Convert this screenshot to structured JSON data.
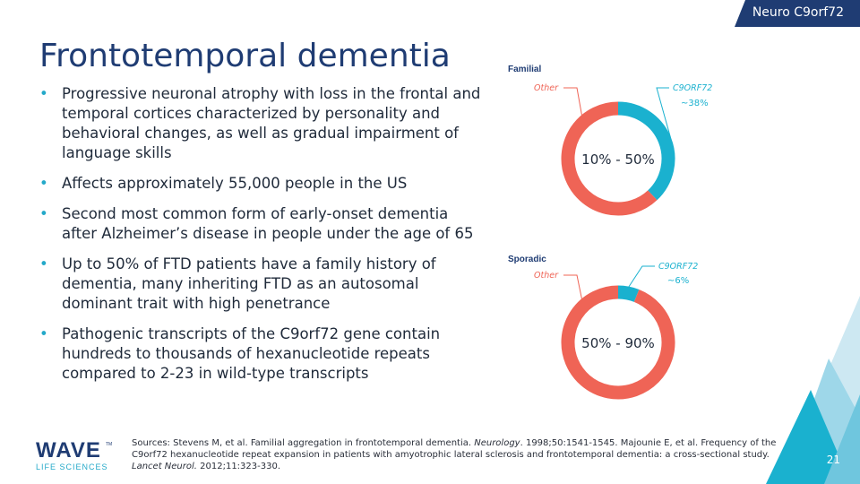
{
  "header": {
    "tag_label": "Neuro C9orf72"
  },
  "page": {
    "title": "Frontotemporal dementia",
    "number": "21"
  },
  "bullets": [
    "Progressive neuronal atrophy with loss in the frontal and temporal cortices characterized by personality and behavioral changes, as well as gradual impairment of language skills",
    "Affects approximately 55,000 people in the US",
    "Second most common form of early-onset dementia after Alzheimer’s disease in people under the age of 65",
    "Up to 50% of FTD patients have a family history of dementia, many inheriting FTD as an autosomal dominant trait with high penetrance",
    "Pathogenic transcripts of the C9orf72 gene contain hundreds to thousands of hexanucleotide repeats compared to 2-23 in wild-type transcripts"
  ],
  "chart_data": [
    {
      "type": "pie",
      "title": "Familial",
      "center_label": "10% - 50%",
      "slices": [
        {
          "label": "C9ORF72",
          "value": 38,
          "value_label": "~38%",
          "color": "#1ab1cf"
        },
        {
          "label": "Other",
          "value": 62,
          "value_label": "",
          "color": "#ef6456"
        }
      ]
    },
    {
      "type": "pie",
      "title": "Sporadic",
      "center_label": "50% - 90%",
      "slices": [
        {
          "label": "C9ORF72",
          "value": 6,
          "value_label": "~6%",
          "color": "#1ab1cf"
        },
        {
          "label": "Other",
          "value": 94,
          "value_label": "",
          "color": "#ef6456"
        }
      ]
    }
  ],
  "footer": {
    "sources": [
      {
        "text": "Sources: Stevens M, et al. Familial aggregation in frontotemporal dementia. ",
        "italic": false
      },
      {
        "text": "Neurology",
        "italic": true
      },
      {
        "text": ". 1998;50:1541-1545. Majounie E, et al. Frequency of the C9orf72 hexanucleotide repeat expansion in patients with amyotrophic lateral sclerosis and frontotemporal dementia: a cross-sectional study. ",
        "italic": false
      },
      {
        "text": "Lancet Neurol.",
        "italic": true
      },
      {
        "text": " 2012;11:323-330.",
        "italic": false
      }
    ],
    "logo": {
      "name": "WAVE",
      "trademark": "TM",
      "subtitle": "LIFE SCIENCES"
    }
  },
  "colors": {
    "navy": "#1f3c73",
    "teal": "#1ab1cf",
    "coral": "#ef6456",
    "bullet": "#24a9c9"
  }
}
